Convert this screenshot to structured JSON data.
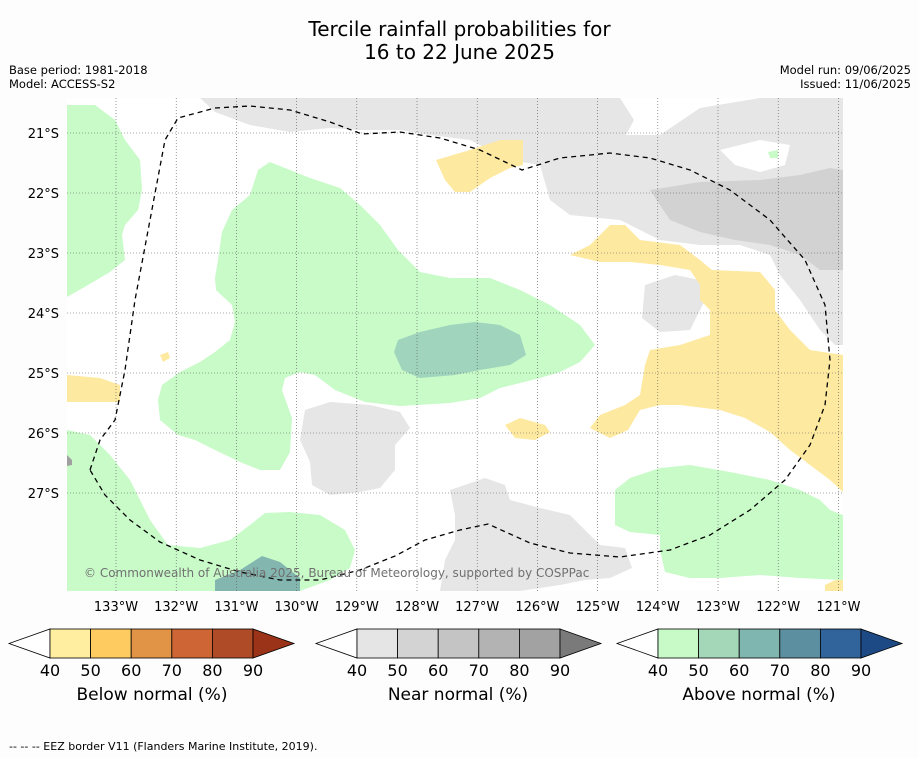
{
  "header": {
    "title_line1": "Tercile rainfall probabilities for",
    "title_line2": "16 to 22 June 2025",
    "base_period": "Base period: 1981-2018",
    "model": "Model: ACCESS-S2",
    "model_run": "Model run: 09/06/2025",
    "issued": "Issued: 11/06/2025"
  },
  "map": {
    "lat_labels": [
      "21°S",
      "22°S",
      "23°S",
      "24°S",
      "25°S",
      "26°S",
      "27°S"
    ],
    "lon_labels": [
      "133°W",
      "132°W",
      "131°W",
      "130°W",
      "129°W",
      "128°W",
      "127°W",
      "126°W",
      "125°W",
      "124°W",
      "123°W",
      "122°W",
      "121°W"
    ],
    "copyright": "© Commonwealth of Australia 2025, Bureau of Meteorology, supported by COSPPac",
    "colors": {
      "below_40": "#fee9a0",
      "near_40": "#e6e6e6",
      "near_50": "#d2d2d2",
      "above_40": "#c8fbc8",
      "above_50": "#a0d4bd",
      "above_60": "#84b6b0"
    }
  },
  "legends": [
    {
      "title": "Below normal (%)",
      "ticks": [
        "40",
        "50",
        "60",
        "70",
        "80",
        "90"
      ],
      "colors": [
        "#ffeda0",
        "#fecb60",
        "#e19445",
        "#cd6535",
        "#b04b27",
        "#9a3317"
      ]
    },
    {
      "title": "Near normal (%)",
      "ticks": [
        "40",
        "50",
        "60",
        "70",
        "80",
        "90"
      ],
      "colors": [
        "#e5e5e5",
        "#d3d3d3",
        "#c4c4c4",
        "#b3b3b3",
        "#a2a2a2",
        "#7a7a7a"
      ]
    },
    {
      "title": "Above normal (%)",
      "ticks": [
        "40",
        "50",
        "60",
        "70",
        "80",
        "90"
      ],
      "colors": [
        "#c8fac8",
        "#a3d7b8",
        "#80b6b0",
        "#5c8fa0",
        "#30649a",
        "#1d4a85"
      ]
    }
  ],
  "footnote": "-- -- -- EEZ border V11 (Flanders Marine Institute, 2019)."
}
